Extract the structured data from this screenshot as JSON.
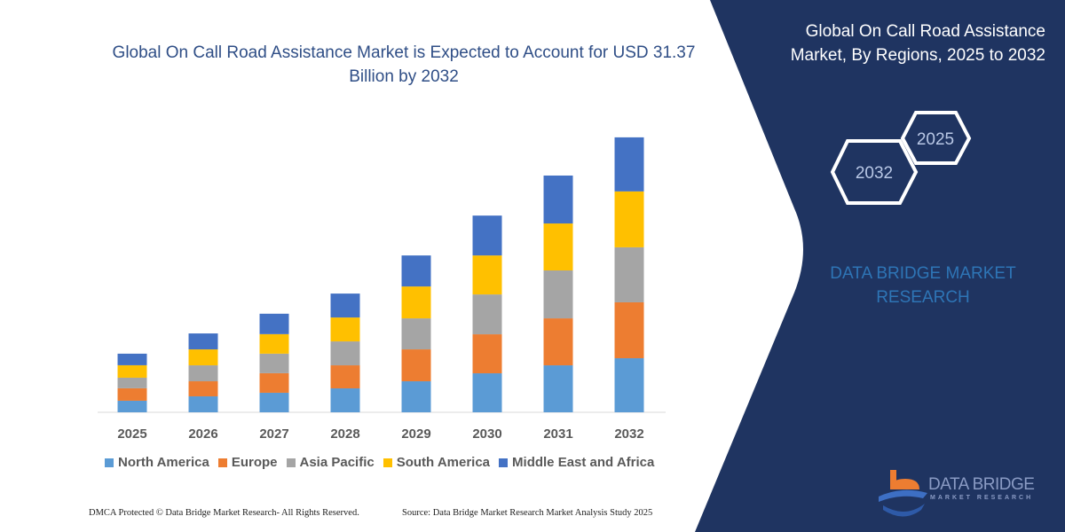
{
  "chart_data": {
    "type": "bar",
    "stacked": true,
    "title": "Global On Call Road Assistance Market is Expected to Account for USD 31.37 Billion by 2032",
    "categories": [
      "2025",
      "2026",
      "2027",
      "2028",
      "2029",
      "2030",
      "2031",
      "2032"
    ],
    "series": [
      {
        "name": "North America",
        "color": "#5B9BD5",
        "values": [
          1.32,
          1.82,
          2.23,
          2.73,
          3.54,
          4.45,
          5.36,
          6.17
        ]
      },
      {
        "name": "Europe",
        "color": "#ED7D31",
        "values": [
          1.42,
          1.72,
          2.23,
          2.63,
          3.64,
          4.45,
          5.36,
          6.38
        ]
      },
      {
        "name": "Asia Pacific",
        "color": "#A5A5A5",
        "values": [
          1.21,
          1.82,
          2.23,
          2.73,
          3.54,
          4.55,
          5.47,
          6.28
        ]
      },
      {
        "name": "South America",
        "color": "#FFC000",
        "values": [
          1.42,
          1.82,
          2.23,
          2.73,
          3.64,
          4.45,
          5.36,
          6.38
        ]
      },
      {
        "name": "Middle East and Africa",
        "color": "#4472C4",
        "values": [
          1.32,
          1.82,
          2.33,
          2.73,
          3.54,
          4.55,
          5.47,
          6.17
        ]
      }
    ],
    "unit": "USD Billion",
    "ylim": [
      0,
      31.37
    ],
    "y_axis_shown": false,
    "grid": false,
    "legend_placement": "bottom"
  },
  "panel": {
    "title": "Global On Call Road Assistance Market, By Regions, 2025 to 2032",
    "hex_years": [
      "2032",
      "2025"
    ],
    "brand": "DATA BRIDGE MARKET RESEARCH",
    "logo_text": "DATA BRIDGE",
    "logo_sub": "MARKET RESEARCH",
    "bg_color": "#1f3461"
  },
  "footer": {
    "left": "DMCA Protected © Data Bridge Market Research-  All Rights Reserved.",
    "right": "Source: Data Bridge Market Research  Market Analysis Study 2025"
  }
}
